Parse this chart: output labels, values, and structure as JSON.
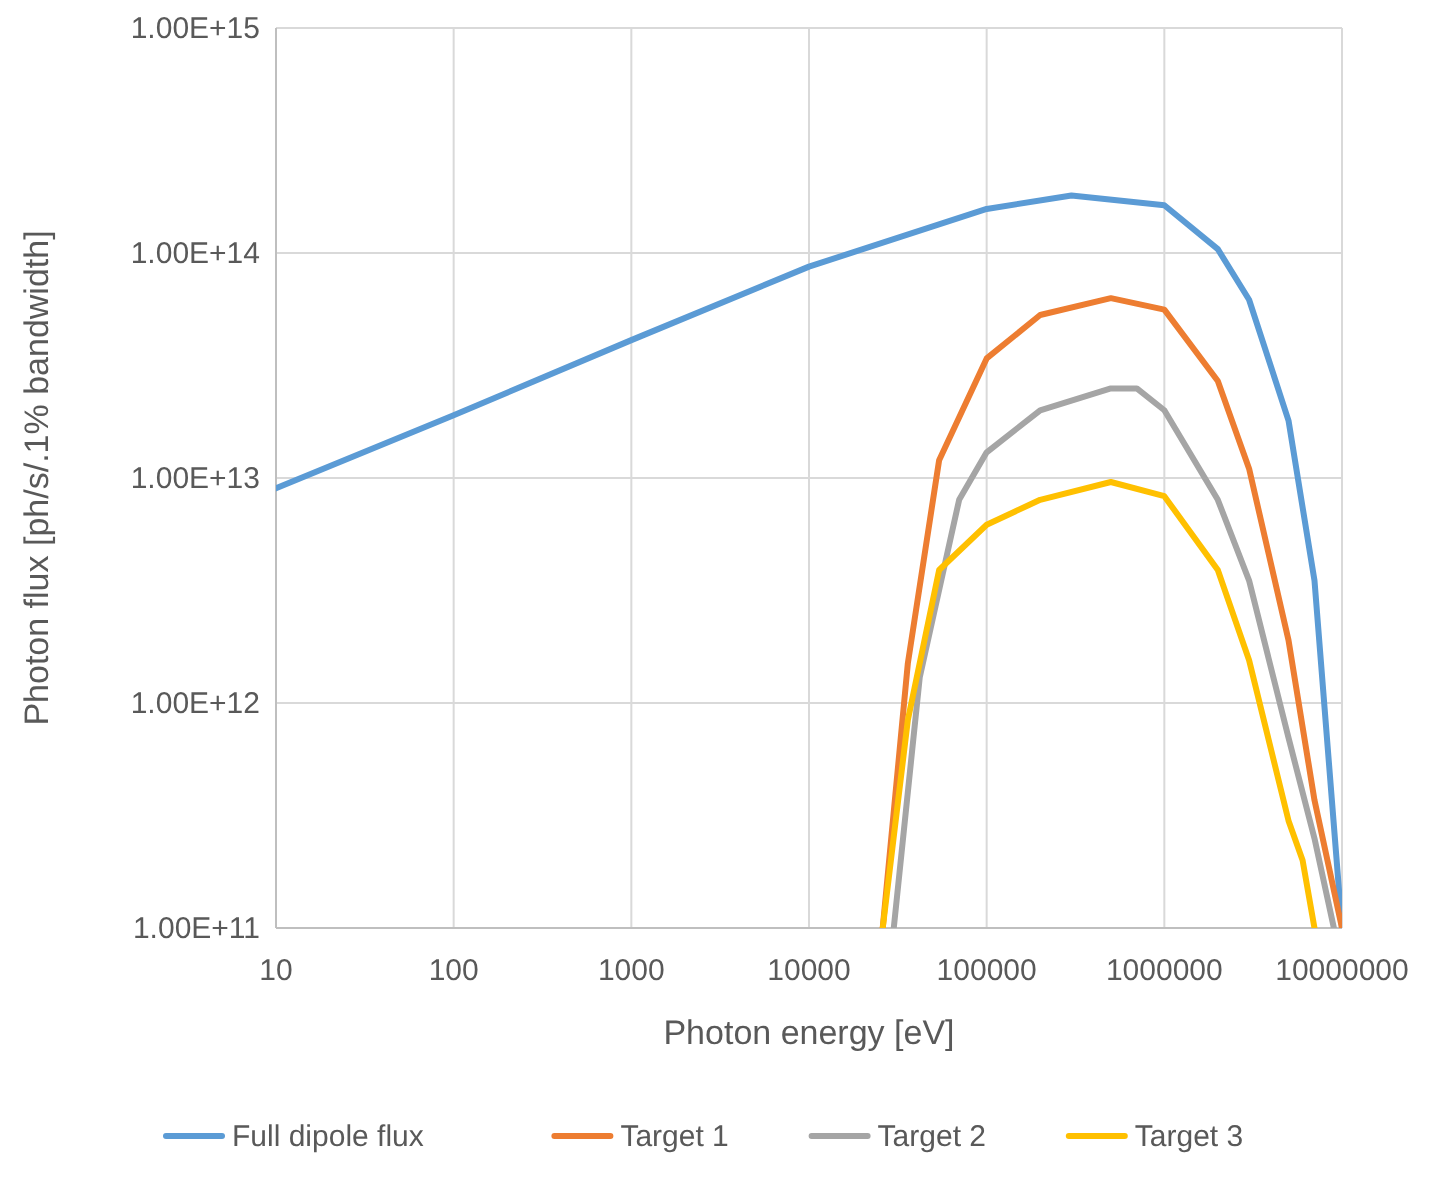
{
  "chart_data": {
    "type": "line",
    "xlabel": "Photon energy [eV]",
    "ylabel": "Photon flux [ph/s/.1% bandwidth]",
    "log": "xy",
    "grid": true,
    "legend": "bottom",
    "line_style": "solid",
    "xlim": [
      10,
      10000000
    ],
    "xticks": [
      10,
      100,
      1000,
      10000,
      100000,
      1000000,
      10000000
    ],
    "ylim": [
      100000000000.0,
      1000000000000000.0
    ],
    "yticks": [
      {
        "value": 100000000000.0,
        "label": "1.00E+11"
      },
      {
        "value": 1000000000000.0,
        "label": "1.00E+12"
      },
      {
        "value": 10000000000000.0,
        "label": "1.00E+13"
      },
      {
        "value": 100000000000000.0,
        "label": "1.00E+14"
      },
      {
        "value": 1000000000000000.0,
        "label": "1.00E+15"
      }
    ],
    "series": [
      {
        "name": "Full dipole flux",
        "color": "#5b9bd5",
        "x": [
          10,
          100,
          1000,
          10000,
          100000,
          300000,
          1000000,
          2000000,
          3000000,
          5000000,
          7000000,
          10000000
        ],
        "values": [
          9000000000000.0,
          19000000000000.0,
          41000000000000.0,
          87000000000000.0,
          157000000000000.0,
          180000000000000.0,
          163000000000000.0,
          104000000000000.0,
          62000000000000.0,
          18000000000000.0,
          3500000000000.0,
          100000000000.0
        ]
      },
      {
        "name": "Target 1",
        "color": "#ed7d31",
        "x": [
          26000,
          36000,
          54000,
          100000,
          200000,
          500000,
          1000000,
          2000000,
          3000000,
          5000000,
          7000000,
          10000000
        ],
        "values": [
          100000000000.0,
          1500000000000.0,
          12000000000000.0,
          34000000000000.0,
          53000000000000.0,
          63000000000000.0,
          56000000000000.0,
          27000000000000.0,
          11000000000000.0,
          1900000000000.0,
          370000000000.0,
          100000000000.0
        ]
      },
      {
        "name": "Target 2",
        "color": "#a5a5a5",
        "x": [
          30000,
          42000,
          70000,
          100000,
          200000,
          500000,
          700000,
          1000000,
          2000000,
          3000000,
          5000000,
          7000000,
          9000000
        ],
        "values": [
          100000000000.0,
          1300000000000.0,
          8000000000000.0,
          13000000000000.0,
          20000000000000.0,
          25000000000000.0,
          25000000000000.0,
          20000000000000.0,
          8000000000000.0,
          3500000000000.0,
          700000000000.0,
          250000000000.0,
          100000000000.0
        ]
      },
      {
        "name": "Target 3",
        "color": "#ffc000",
        "x": [
          26000,
          36000,
          54000,
          100000,
          200000,
          500000,
          1000000,
          2000000,
          3000000,
          5000000,
          6000000,
          7000000
        ],
        "values": [
          100000000000.0,
          840000000000.0,
          3900000000000.0,
          6200000000000.0,
          8000000000000.0,
          9600000000000.0,
          8300000000000.0,
          3900000000000.0,
          1550000000000.0,
          300000000000.0,
          200000000000.0,
          100000000000.0
        ]
      }
    ]
  }
}
